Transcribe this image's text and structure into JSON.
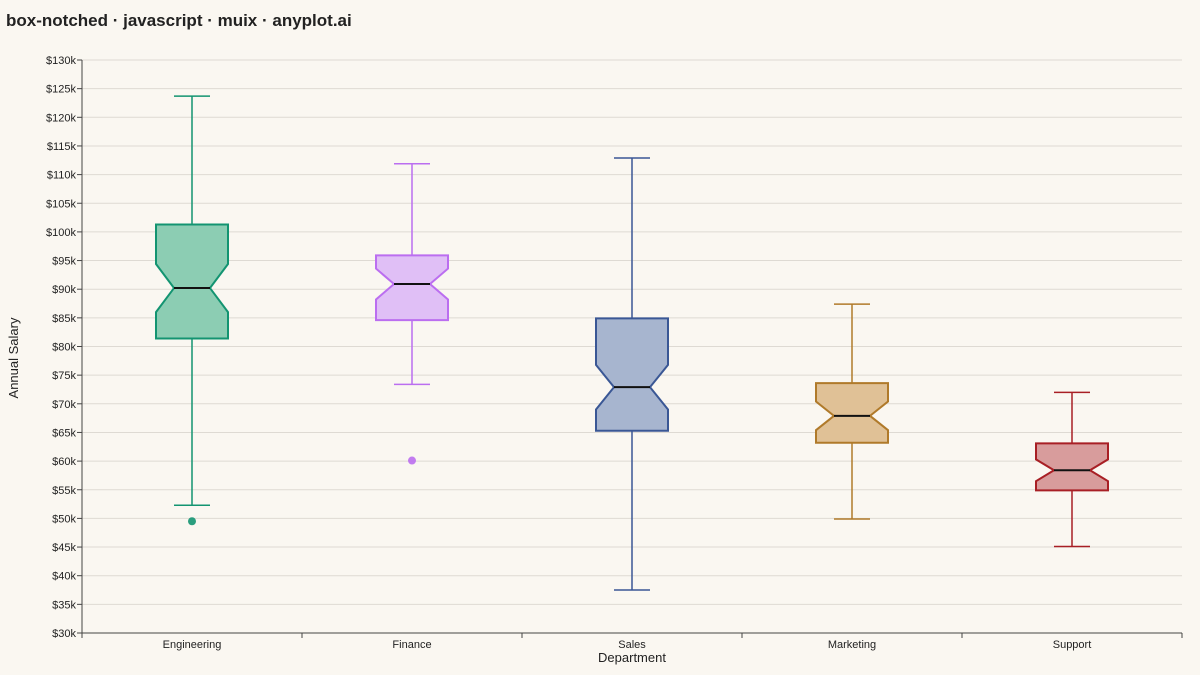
{
  "title": "box-notched · javascript · muix · anyplot.ai",
  "chart_data": {
    "type": "box",
    "notched": true,
    "xlabel": "Department",
    "ylabel": "Annual Salary",
    "ylim": [
      30000,
      130000
    ],
    "ytick_step": 5000,
    "ytick_labels": [
      "$30k",
      "$35k",
      "$40k",
      "$45k",
      "$50k",
      "$55k",
      "$60k",
      "$65k",
      "$70k",
      "$75k",
      "$80k",
      "$85k",
      "$90k",
      "$95k",
      "$100k",
      "$105k",
      "$110k",
      "$115k",
      "$120k",
      "$125k",
      "$130k"
    ],
    "grid": true,
    "legend": false,
    "categories": [
      "Engineering",
      "Finance",
      "Sales",
      "Marketing",
      "Support"
    ],
    "boxes": [
      {
        "category": "Engineering",
        "whisker_low": 52300,
        "q1": 81400,
        "median": 90200,
        "q3": 101300,
        "whisker_high": 123700,
        "notch_low": 86000,
        "notch_high": 94400,
        "outliers": [
          49500
        ],
        "color": "#139471",
        "fill": "#8ccdb3"
      },
      {
        "category": "Finance",
        "whisker_low": 73400,
        "q1": 84600,
        "median": 90900,
        "q3": 95900,
        "whisker_high": 111900,
        "notch_low": 88200,
        "notch_high": 93600,
        "outliers": [
          60100
        ],
        "color": "#bb6ef0",
        "fill": "#e0bff6"
      },
      {
        "category": "Sales",
        "whisker_low": 37500,
        "q1": 65300,
        "median": 72900,
        "q3": 84900,
        "whisker_high": 112900,
        "notch_low": 69000,
        "notch_high": 76800,
        "outliers": [],
        "color": "#3a5795",
        "fill": "#a7b5cf"
      },
      {
        "category": "Marketing",
        "whisker_low": 49900,
        "q1": 63200,
        "median": 67900,
        "q3": 73600,
        "whisker_high": 87400,
        "notch_low": 65400,
        "notch_high": 70400,
        "outliers": [],
        "color": "#b07a2a",
        "fill": "#e0c196"
      },
      {
        "category": "Support",
        "whisker_low": 45100,
        "q1": 54900,
        "median": 58400,
        "q3": 63100,
        "whisker_high": 72000,
        "notch_low": 56500,
        "notch_high": 60300,
        "outliers": [],
        "color": "#a81f25",
        "fill": "#d89c9c"
      }
    ]
  }
}
